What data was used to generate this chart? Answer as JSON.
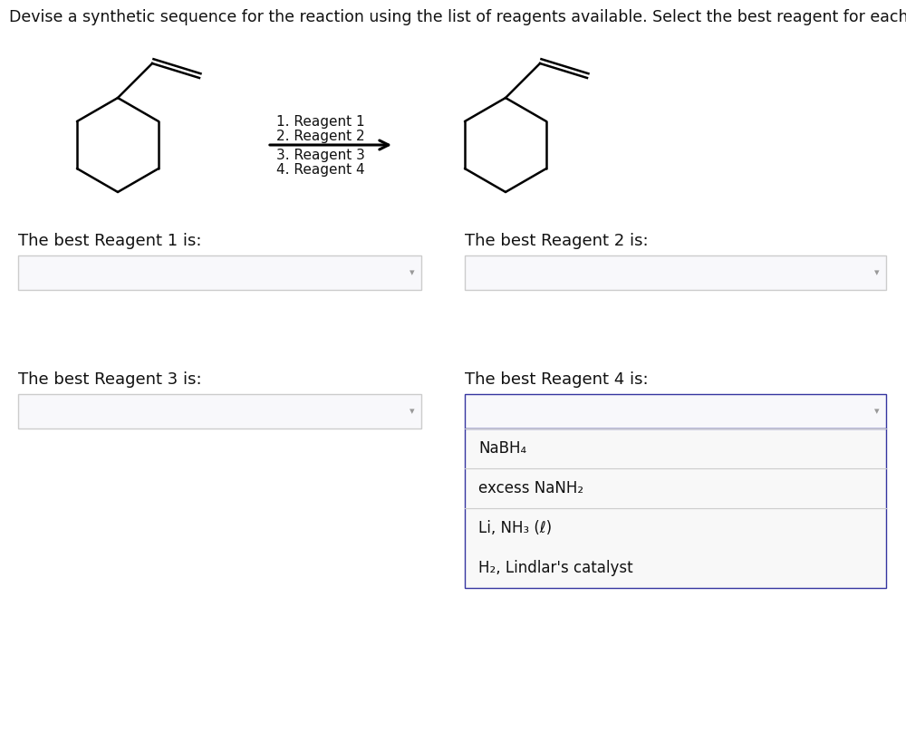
{
  "title": "Devise a synthetic sequence for the reaction using the list of reagents available. Select the best reagent for each step.",
  "title_fontsize": 12.5,
  "background_color": "#ffffff",
  "reagent_labels_left": [
    "1. Reagent 1",
    "2. Reagent 2"
  ],
  "reagent_labels_right": [
    "3. Reagent 3",
    "4. Reagent 4"
  ],
  "label1": "The best Reagent 1 is:",
  "label2": "The best Reagent 2 is:",
  "label3": "The best Reagent 3 is:",
  "label4": "The best Reagent 4 is:",
  "dropdown_border_color_normal": "#cccccc",
  "dropdown_border_color_active": "#3535a0",
  "dropdown_bg_normal": "#f8f8fb",
  "dropdown_bg_active": "#eeeef8",
  "dropdown_arrow_color": "#999999",
  "menu_items": [
    "NaBH₄",
    "excess NaNH₂",
    "Li, NH₃ (ℓ)",
    "H₂, Lindlar's catalyst"
  ],
  "menu_bg": "#f2f2f2",
  "menu_border_color": "#3535a0",
  "label_fontsize": 13,
  "menu_fontsize": 12,
  "reagent_label_fontsize": 11
}
